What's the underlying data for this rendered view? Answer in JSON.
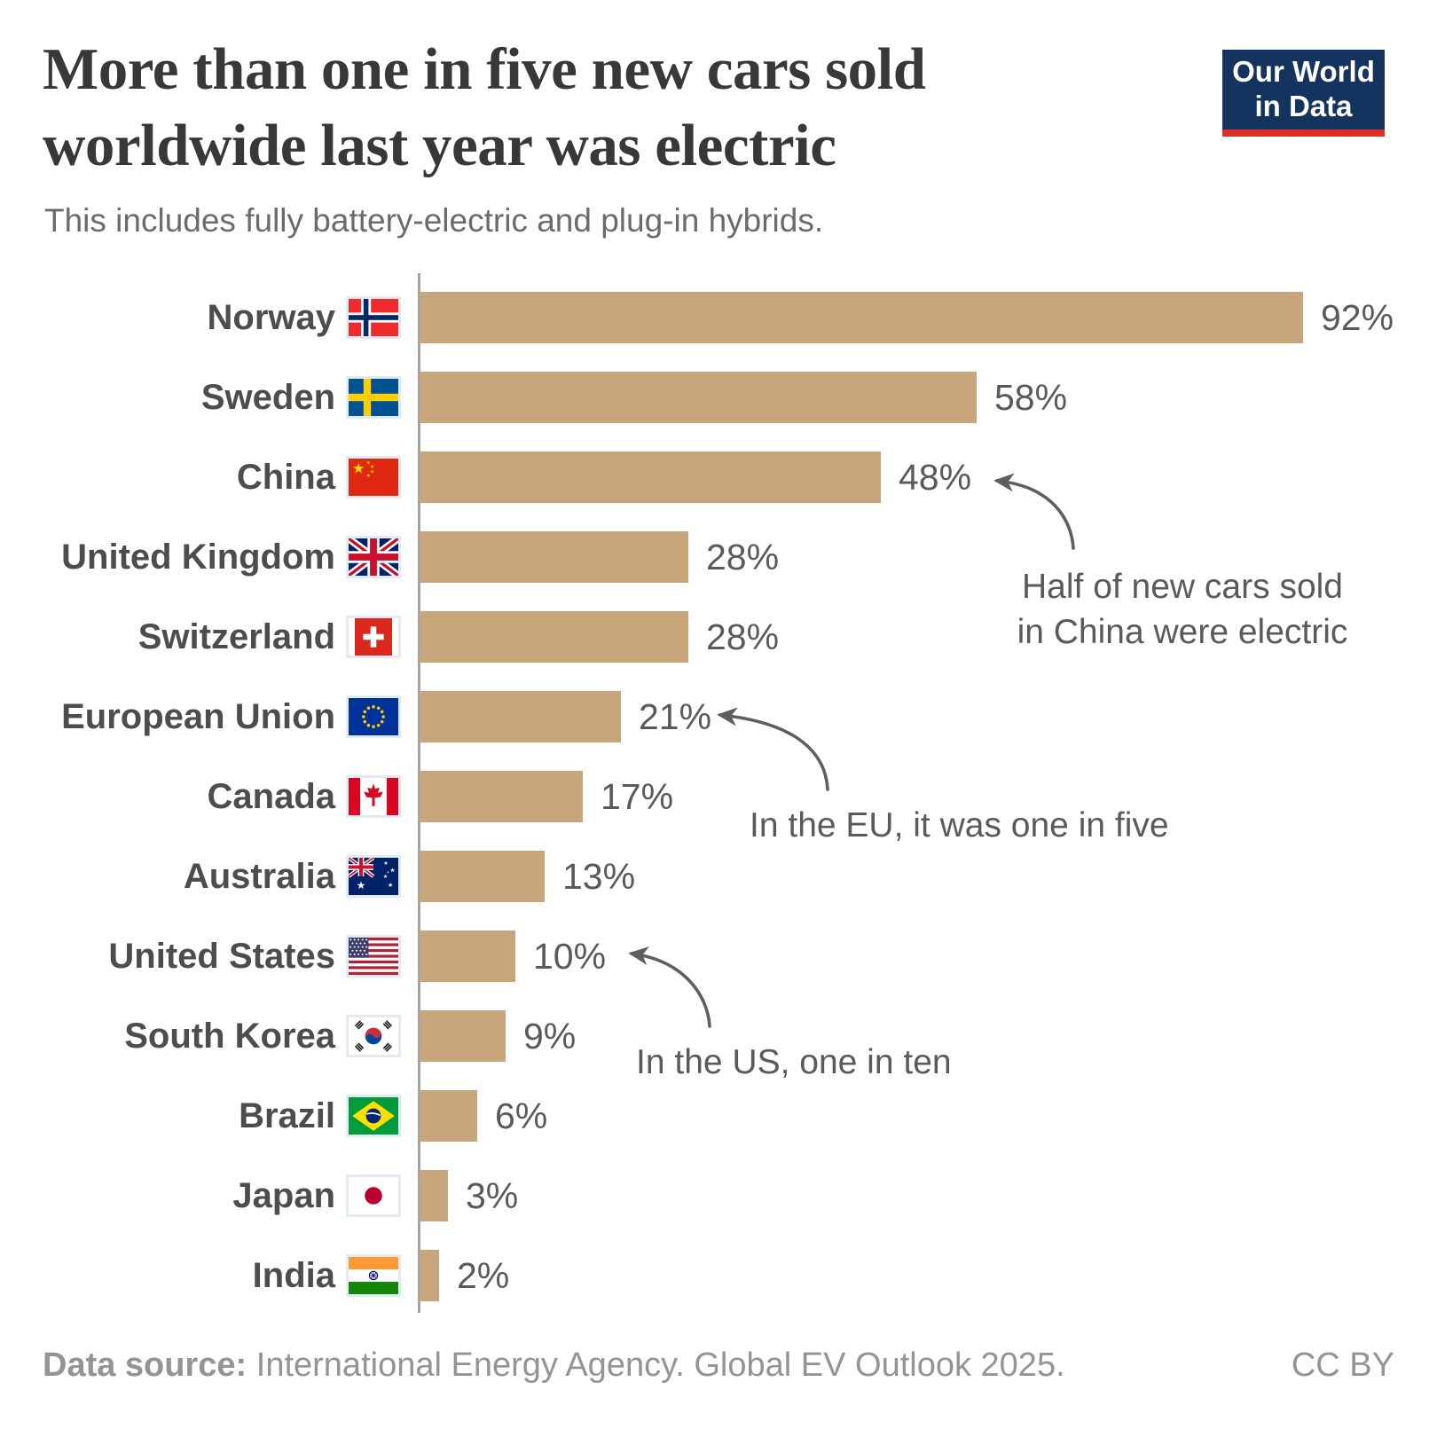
{
  "header": {
    "title_line1": "More than one in five new cars sold",
    "title_line2": "worldwide last year was electric",
    "subtitle": "This includes fully battery-electric and plug-in hybrids.",
    "logo": {
      "line1": "Our World",
      "line2": "in Data"
    }
  },
  "chart_data": {
    "type": "bar",
    "orientation": "horizontal",
    "title": "More than one in five new cars sold worldwide last year was electric",
    "subtitle": "This includes fully battery-electric and plug-in hybrids.",
    "unit": "%",
    "xlim": [
      0,
      100
    ],
    "grid": false,
    "bar_color": "#C9A57C",
    "categories": [
      "Norway",
      "Sweden",
      "China",
      "United Kingdom",
      "Switzerland",
      "European Union",
      "Canada",
      "Australia",
      "United States",
      "South Korea",
      "Brazil",
      "Japan",
      "India"
    ],
    "values": [
      92,
      58,
      48,
      28,
      28,
      21,
      17,
      13,
      10,
      9,
      6,
      3,
      2
    ],
    "labels": [
      "92%",
      "58%",
      "48%",
      "28%",
      "28%",
      "21%",
      "17%",
      "13%",
      "10%",
      "9%",
      "6%",
      "3%",
      "2%"
    ],
    "annotations": [
      {
        "target": "China",
        "text": "Half of new cars sold in China were electric"
      },
      {
        "target": "European Union",
        "text": "In the EU, it was one in five"
      },
      {
        "target": "United States",
        "text": "In the US, one in ten"
      }
    ]
  },
  "annotations": {
    "china_line1": "Half of new cars sold",
    "china_line2": "in China were electric",
    "eu": "In the EU, it was one in five",
    "us": "In the US, one in ten"
  },
  "icons": {
    "flags": [
      "norway-flag-icon",
      "sweden-flag-icon",
      "china-flag-icon",
      "united-kingdom-flag-icon",
      "switzerland-flag-icon",
      "european-union-flag-icon",
      "canada-flag-icon",
      "australia-flag-icon",
      "united-states-flag-icon",
      "south-korea-flag-icon",
      "brazil-flag-icon",
      "japan-flag-icon",
      "india-flag-icon"
    ],
    "arrows": [
      "curved-arrow-icon",
      "curved-arrow-icon",
      "curved-arrow-icon"
    ]
  },
  "colors": {
    "bar": "#C9A57C",
    "axis": "#A5A5A5",
    "title_text": "#383838",
    "subtitle_text": "#6B6B6B",
    "label_text": "#4D4D4D",
    "value_text": "#5A5A5A",
    "annotation_text": "#5A5A5A",
    "arrow": "#5E5E5E",
    "footer_text": "#949494",
    "logo_navy": "#15335F",
    "logo_red": "#DE2D26"
  },
  "footer": {
    "source_label": "Data source:",
    "source_text": "International Energy Agency. Global EV Outlook 2025.",
    "license": "CC BY"
  }
}
